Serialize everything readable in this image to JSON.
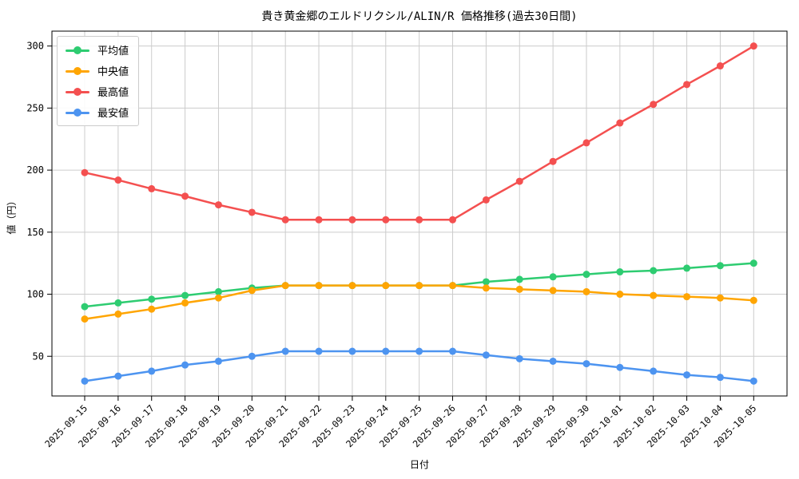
{
  "title": "貴き黄金郷のエルドリクシル/ALIN/R 価格推移(過去30日間)",
  "axes": {
    "xlabel": "日付",
    "ylabel": "値（円）"
  },
  "legend": {
    "position": "upper left",
    "items": [
      "平均値",
      "中央値",
      "最高値",
      "最安値"
    ]
  },
  "chart_data": {
    "type": "line",
    "title": "貴き黄金郷のエルドリクシル/ALIN/R 価格推移(過去30日間)",
    "xlabel": "日付",
    "ylabel": "値（円）",
    "x": [
      "2025-09-15",
      "2025-09-16",
      "2025-09-17",
      "2025-09-18",
      "2025-09-19",
      "2025-09-20",
      "2025-09-21",
      "2025-09-22",
      "2025-09-23",
      "2025-09-24",
      "2025-09-25",
      "2025-09-26",
      "2025-09-27",
      "2025-09-28",
      "2025-09-29",
      "2025-09-30",
      "2025-10-01",
      "2025-10-02",
      "2025-10-03",
      "2025-10-04",
      "2025-10-05"
    ],
    "series": [
      {
        "name": "平均値",
        "color": "#2ecc71",
        "values": [
          90,
          93,
          96,
          99,
          102,
          105,
          107,
          107,
          107,
          107,
          107,
          107,
          110,
          112,
          114,
          116,
          118,
          119,
          121,
          123,
          125
        ]
      },
      {
        "name": "中央値",
        "color": "#ffa502",
        "values": [
          80,
          84,
          88,
          93,
          97,
          103,
          107,
          107,
          107,
          107,
          107,
          107,
          105,
          104,
          103,
          102,
          100,
          99,
          98,
          97,
          95
        ]
      },
      {
        "name": "最高値",
        "color": "#f45050",
        "values": [
          198,
          192,
          185,
          179,
          172,
          166,
          160,
          160,
          160,
          160,
          160,
          160,
          176,
          191,
          207,
          222,
          238,
          253,
          269,
          284,
          300
        ]
      },
      {
        "name": "最安値",
        "color": "#4d94f0",
        "values": [
          30,
          34,
          38,
          43,
          46,
          50,
          54,
          54,
          54,
          54,
          54,
          54,
          51,
          48,
          46,
          44,
          41,
          38,
          35,
          33,
          30
        ]
      }
    ],
    "yticks": [
      50,
      100,
      150,
      200,
      250,
      300
    ],
    "ylim": [
      18,
      312
    ],
    "grid": true,
    "grid_color": "#cccccc",
    "legend_position": "upper left"
  }
}
